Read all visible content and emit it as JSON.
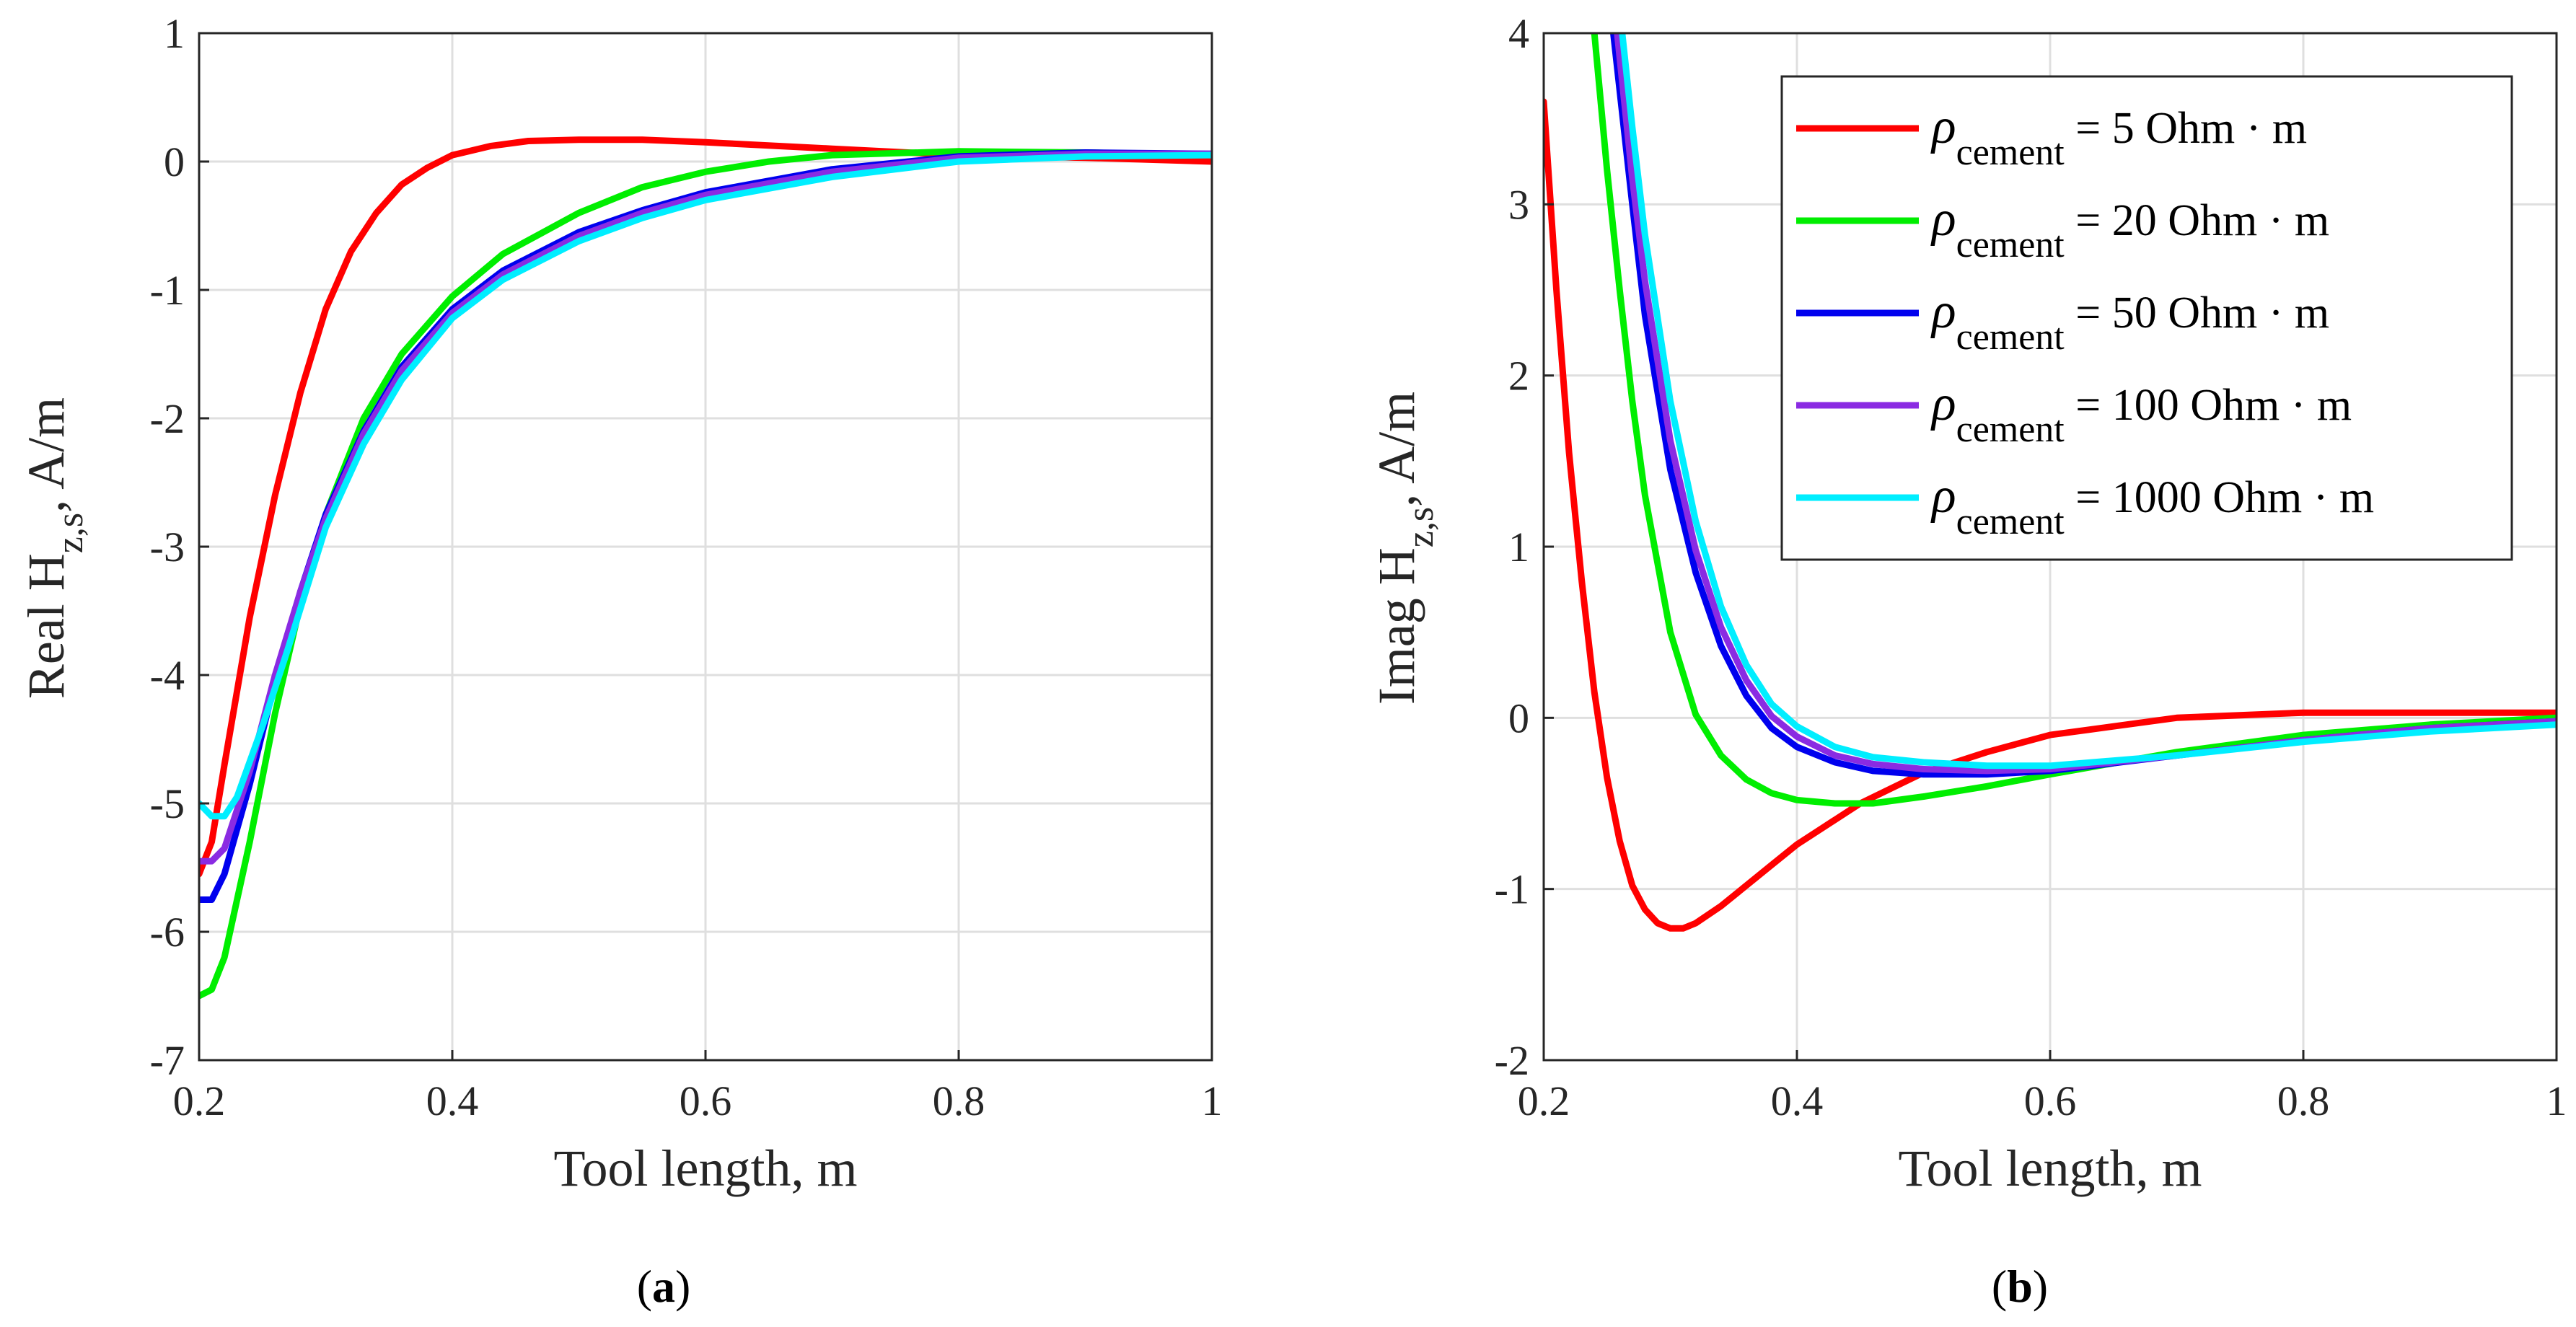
{
  "chart_data": [
    {
      "type": "line",
      "caption_letter": "a",
      "xlabel": "Tool length, m",
      "ylabel_main": "Real H",
      "ylabel_sub": "z,s",
      "ylabel_tail": ", A/m",
      "xlim": [
        0.2,
        1
      ],
      "ylim": [
        -7,
        1
      ],
      "xticks": [
        0.2,
        0.4,
        0.6,
        0.8,
        1
      ],
      "xtick_labels": [
        "0.2",
        "0.4",
        "0.6",
        "0.8",
        "1"
      ],
      "yticks": [
        -7,
        -6,
        -5,
        -4,
        -3,
        -2,
        -1,
        0,
        1
      ],
      "ytick_labels": [
        "-7",
        "-6",
        "-5",
        "-4",
        "-3",
        "-2",
        "-1",
        "0",
        "1"
      ],
      "grid": true,
      "series": [
        {
          "name": "5 Ohm · m",
          "color": "#ff0000",
          "points": [
            [
              0.2,
              -5.55
            ],
            [
              0.21,
              -5.3
            ],
            [
              0.22,
              -4.7
            ],
            [
              0.24,
              -3.55
            ],
            [
              0.26,
              -2.6
            ],
            [
              0.28,
              -1.8
            ],
            [
              0.3,
              -1.15
            ],
            [
              0.32,
              -0.7
            ],
            [
              0.34,
              -0.4
            ],
            [
              0.36,
              -0.18
            ],
            [
              0.38,
              -0.05
            ],
            [
              0.4,
              0.05
            ],
            [
              0.43,
              0.12
            ],
            [
              0.46,
              0.16
            ],
            [
              0.5,
              0.17
            ],
            [
              0.55,
              0.17
            ],
            [
              0.6,
              0.15
            ],
            [
              0.7,
              0.1
            ],
            [
              0.8,
              0.05
            ],
            [
              0.9,
              0.03
            ],
            [
              1.0,
              0.0
            ]
          ]
        },
        {
          "name": "20 Ohm · m",
          "color": "#00ee00",
          "points": [
            [
              0.2,
              -6.5
            ],
            [
              0.21,
              -6.45
            ],
            [
              0.22,
              -6.2
            ],
            [
              0.24,
              -5.3
            ],
            [
              0.26,
              -4.3
            ],
            [
              0.28,
              -3.45
            ],
            [
              0.3,
              -2.75
            ],
            [
              0.33,
              -2.0
            ],
            [
              0.36,
              -1.5
            ],
            [
              0.4,
              -1.05
            ],
            [
              0.44,
              -0.72
            ],
            [
              0.5,
              -0.4
            ],
            [
              0.55,
              -0.2
            ],
            [
              0.6,
              -0.08
            ],
            [
              0.65,
              0.0
            ],
            [
              0.7,
              0.05
            ],
            [
              0.8,
              0.08
            ],
            [
              0.9,
              0.07
            ],
            [
              1.0,
              0.05
            ]
          ]
        },
        {
          "name": "50 Ohm · m",
          "color": "#0000ee",
          "points": [
            [
              0.2,
              -5.75
            ],
            [
              0.21,
              -5.75
            ],
            [
              0.22,
              -5.55
            ],
            [
              0.24,
              -4.85
            ],
            [
              0.26,
              -4.05
            ],
            [
              0.28,
              -3.35
            ],
            [
              0.3,
              -2.75
            ],
            [
              0.33,
              -2.1
            ],
            [
              0.36,
              -1.6
            ],
            [
              0.4,
              -1.15
            ],
            [
              0.44,
              -0.85
            ],
            [
              0.5,
              -0.55
            ],
            [
              0.55,
              -0.38
            ],
            [
              0.6,
              -0.24
            ],
            [
              0.7,
              -0.06
            ],
            [
              0.8,
              0.04
            ],
            [
              0.9,
              0.07
            ],
            [
              1.0,
              0.06
            ]
          ]
        },
        {
          "name": "100 Ohm · m",
          "color": "#8a2be2",
          "points": [
            [
              0.2,
              -5.45
            ],
            [
              0.21,
              -5.45
            ],
            [
              0.22,
              -5.35
            ],
            [
              0.24,
              -4.75
            ],
            [
              0.26,
              -4.0
            ],
            [
              0.28,
              -3.35
            ],
            [
              0.3,
              -2.78
            ],
            [
              0.33,
              -2.12
            ],
            [
              0.36,
              -1.63
            ],
            [
              0.4,
              -1.18
            ],
            [
              0.44,
              -0.88
            ],
            [
              0.5,
              -0.58
            ],
            [
              0.55,
              -0.4
            ],
            [
              0.6,
              -0.26
            ],
            [
              0.7,
              -0.08
            ],
            [
              0.8,
              0.03
            ],
            [
              0.9,
              0.06
            ],
            [
              1.0,
              0.06
            ]
          ]
        },
        {
          "name": "1000 Ohm · m",
          "color": "#00eeff",
          "points": [
            [
              0.2,
              -5.0
            ],
            [
              0.21,
              -5.1
            ],
            [
              0.22,
              -5.1
            ],
            [
              0.23,
              -4.95
            ],
            [
              0.25,
              -4.4
            ],
            [
              0.27,
              -3.8
            ],
            [
              0.3,
              -2.85
            ],
            [
              0.33,
              -2.2
            ],
            [
              0.36,
              -1.7
            ],
            [
              0.4,
              -1.22
            ],
            [
              0.44,
              -0.92
            ],
            [
              0.5,
              -0.62
            ],
            [
              0.55,
              -0.44
            ],
            [
              0.6,
              -0.3
            ],
            [
              0.7,
              -0.12
            ],
            [
              0.8,
              0.0
            ],
            [
              0.9,
              0.04
            ],
            [
              1.0,
              0.05
            ]
          ]
        }
      ]
    },
    {
      "type": "line",
      "caption_letter": "b",
      "xlabel": "Tool length, m",
      "ylabel_main": "Imag H",
      "ylabel_sub": "z,s",
      "ylabel_tail": ", A/m",
      "xlim": [
        0.2,
        1
      ],
      "ylim": [
        -2,
        4
      ],
      "xticks": [
        0.2,
        0.4,
        0.6,
        0.8,
        1
      ],
      "xtick_labels": [
        "0.2",
        "0.4",
        "0.6",
        "0.8",
        "1"
      ],
      "yticks": [
        -2,
        -1,
        0,
        1,
        2,
        3,
        4
      ],
      "ytick_labels": [
        "-2",
        "-1",
        "0",
        "1",
        "2",
        "3",
        "4"
      ],
      "grid": true,
      "legend_position": "top-right",
      "legend_symbol": "ρ",
      "legend_sub": "cement",
      "legend_eq": " = ",
      "series": [
        {
          "name": "5 Ohm · m",
          "color": "#ff0000",
          "points": [
            [
              0.2,
              3.6
            ],
            [
              0.21,
              2.5
            ],
            [
              0.22,
              1.55
            ],
            [
              0.23,
              0.8
            ],
            [
              0.24,
              0.15
            ],
            [
              0.25,
              -0.35
            ],
            [
              0.26,
              -0.72
            ],
            [
              0.27,
              -0.98
            ],
            [
              0.28,
              -1.12
            ],
            [
              0.29,
              -1.2
            ],
            [
              0.3,
              -1.23
            ],
            [
              0.31,
              -1.23
            ],
            [
              0.32,
              -1.2
            ],
            [
              0.34,
              -1.1
            ],
            [
              0.36,
              -0.98
            ],
            [
              0.38,
              -0.86
            ],
            [
              0.4,
              -0.74
            ],
            [
              0.45,
              -0.5
            ],
            [
              0.5,
              -0.32
            ],
            [
              0.55,
              -0.2
            ],
            [
              0.6,
              -0.1
            ],
            [
              0.7,
              0.0
            ],
            [
              0.8,
              0.03
            ],
            [
              0.9,
              0.03
            ],
            [
              1.0,
              0.03
            ]
          ]
        },
        {
          "name": "20 Ohm · m",
          "color": "#00ee00",
          "points": [
            [
              0.24,
              4.0
            ],
            [
              0.25,
              3.2
            ],
            [
              0.26,
              2.5
            ],
            [
              0.27,
              1.85
            ],
            [
              0.28,
              1.3
            ],
            [
              0.3,
              0.5
            ],
            [
              0.32,
              0.02
            ],
            [
              0.34,
              -0.22
            ],
            [
              0.36,
              -0.36
            ],
            [
              0.38,
              -0.44
            ],
            [
              0.4,
              -0.48
            ],
            [
              0.43,
              -0.5
            ],
            [
              0.46,
              -0.5
            ],
            [
              0.5,
              -0.46
            ],
            [
              0.55,
              -0.4
            ],
            [
              0.6,
              -0.33
            ],
            [
              0.7,
              -0.2
            ],
            [
              0.8,
              -0.1
            ],
            [
              0.9,
              -0.04
            ],
            [
              1.0,
              0.0
            ]
          ]
        },
        {
          "name": "50 Ohm · m",
          "color": "#0000ee",
          "points": [
            [
              0.255,
              4.0
            ],
            [
              0.27,
              3.0
            ],
            [
              0.28,
              2.35
            ],
            [
              0.3,
              1.45
            ],
            [
              0.32,
              0.85
            ],
            [
              0.34,
              0.42
            ],
            [
              0.36,
              0.13
            ],
            [
              0.38,
              -0.06
            ],
            [
              0.4,
              -0.17
            ],
            [
              0.43,
              -0.26
            ],
            [
              0.46,
              -0.31
            ],
            [
              0.5,
              -0.33
            ],
            [
              0.55,
              -0.33
            ],
            [
              0.6,
              -0.31
            ],
            [
              0.7,
              -0.22
            ],
            [
              0.8,
              -0.13
            ],
            [
              0.9,
              -0.06
            ],
            [
              1.0,
              -0.02
            ]
          ]
        },
        {
          "name": "100 Ohm · m",
          "color": "#8a2be2",
          "points": [
            [
              0.258,
              4.0
            ],
            [
              0.27,
              3.15
            ],
            [
              0.28,
              2.55
            ],
            [
              0.3,
              1.62
            ],
            [
              0.32,
              0.98
            ],
            [
              0.34,
              0.53
            ],
            [
              0.36,
              0.22
            ],
            [
              0.38,
              0.01
            ],
            [
              0.4,
              -0.11
            ],
            [
              0.43,
              -0.22
            ],
            [
              0.46,
              -0.27
            ],
            [
              0.5,
              -0.3
            ],
            [
              0.55,
              -0.31
            ],
            [
              0.6,
              -0.3
            ],
            [
              0.7,
              -0.22
            ],
            [
              0.8,
              -0.13
            ],
            [
              0.9,
              -0.06
            ],
            [
              1.0,
              -0.02
            ]
          ]
        },
        {
          "name": "1000 Ohm · m",
          "color": "#00eeff",
          "points": [
            [
              0.262,
              4.0
            ],
            [
              0.27,
              3.45
            ],
            [
              0.28,
              2.82
            ],
            [
              0.3,
              1.85
            ],
            [
              0.32,
              1.15
            ],
            [
              0.34,
              0.65
            ],
            [
              0.36,
              0.31
            ],
            [
              0.38,
              0.08
            ],
            [
              0.4,
              -0.05
            ],
            [
              0.43,
              -0.17
            ],
            [
              0.46,
              -0.23
            ],
            [
              0.5,
              -0.26
            ],
            [
              0.55,
              -0.28
            ],
            [
              0.6,
              -0.28
            ],
            [
              0.7,
              -0.22
            ],
            [
              0.8,
              -0.14
            ],
            [
              0.9,
              -0.08
            ],
            [
              1.0,
              -0.04
            ]
          ]
        }
      ]
    }
  ]
}
